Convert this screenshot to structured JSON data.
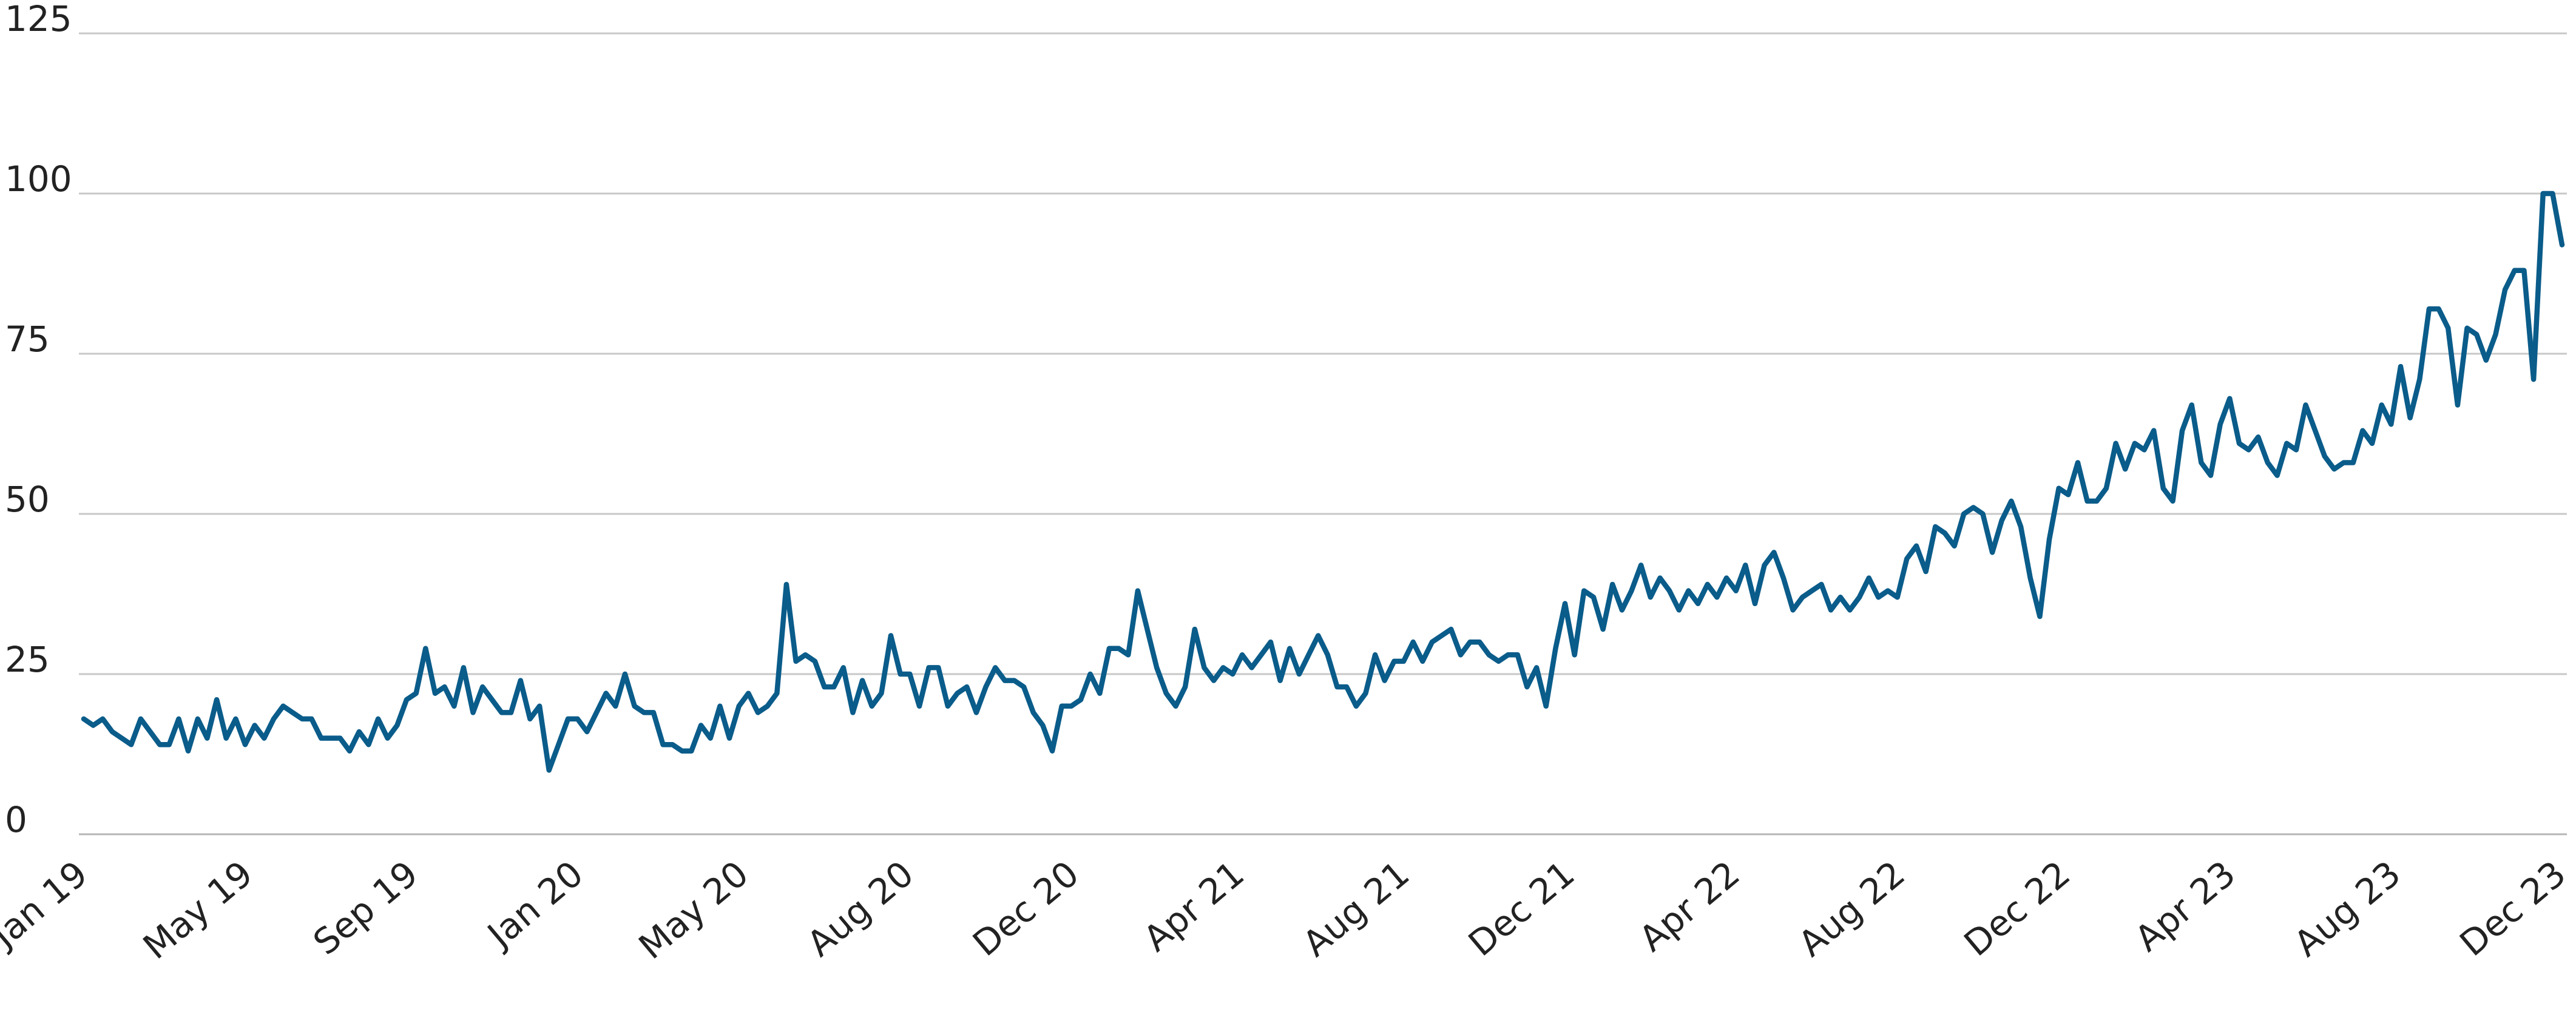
{
  "chart_data": {
    "type": "line",
    "title": "",
    "xlabel": "",
    "ylabel": "",
    "ylim": [
      0,
      125
    ],
    "yticks": [
      "0",
      "25",
      "50",
      "75",
      "100",
      "125"
    ],
    "xticks": [
      "Jan 19",
      "May 19",
      "Sep 19",
      "Jan 20",
      "May 20",
      "Aug 20",
      "Dec 20",
      "Apr 21",
      "Aug 21",
      "Dec 21",
      "Apr 22",
      "Aug 22",
      "Dec 22",
      "Apr 23",
      "Aug 23",
      "Dec 23"
    ],
    "grid": true,
    "legend": "none",
    "line_color": "#0a5c8a",
    "series": [
      {
        "x_start": "2019-01-06",
        "x_step": "1 week",
        "values": [
          18,
          17,
          18,
          16,
          15,
          14,
          18,
          16,
          14,
          14,
          18,
          13,
          18,
          15,
          21,
          15,
          18,
          14,
          17,
          15,
          18,
          20,
          19,
          18,
          18,
          15,
          15,
          15,
          13,
          16,
          14,
          18,
          15,
          17,
          21,
          22,
          29,
          22,
          23,
          20,
          26,
          19,
          23,
          21,
          19,
          19,
          24,
          18,
          20,
          10,
          14,
          18,
          18,
          16,
          19,
          22,
          20,
          25,
          20,
          19,
          19,
          14,
          14,
          13,
          13,
          17,
          15,
          20,
          15,
          20,
          22,
          19,
          20,
          22,
          39,
          27,
          28,
          27,
          23,
          23,
          26,
          19,
          24,
          20,
          22,
          31,
          25,
          25,
          20,
          26,
          26,
          20,
          22,
          23,
          19,
          23,
          26,
          24,
          24,
          23,
          19,
          17,
          13,
          20,
          20,
          21,
          25,
          22,
          29,
          29,
          28,
          38,
          32,
          26,
          22,
          20,
          23,
          32,
          26,
          24,
          26,
          25,
          28,
          26,
          28,
          30,
          24,
          29,
          25,
          28,
          31,
          28,
          23,
          23,
          20,
          22,
          28,
          24,
          27,
          27,
          30,
          27,
          30,
          31,
          32,
          28,
          30,
          30,
          28,
          27,
          28,
          28,
          23,
          26,
          20,
          29,
          36,
          28,
          38,
          37,
          32,
          39,
          35,
          38,
          42,
          37,
          40,
          38,
          35,
          38,
          36,
          39,
          37,
          40,
          38,
          42,
          36,
          42,
          44,
          40,
          35,
          37,
          38,
          39,
          35,
          37,
          35,
          37,
          40,
          37,
          38,
          37,
          43,
          45,
          41,
          48,
          47,
          45,
          50,
          51,
          50,
          44,
          49,
          52,
          48,
          40,
          34,
          46,
          54,
          53,
          58,
          52,
          52,
          54,
          61,
          57,
          61,
          60,
          63,
          54,
          52,
          63,
          67,
          58,
          56,
          64,
          68,
          61,
          60,
          62,
          58,
          56,
          61,
          60,
          67,
          63,
          59,
          57,
          58,
          58,
          63,
          61,
          67,
          64,
          73,
          65,
          71,
          82,
          82,
          79,
          67,
          79,
          78,
          74,
          78,
          85,
          88,
          88,
          71,
          100,
          100,
          92
        ]
      }
    ]
  }
}
